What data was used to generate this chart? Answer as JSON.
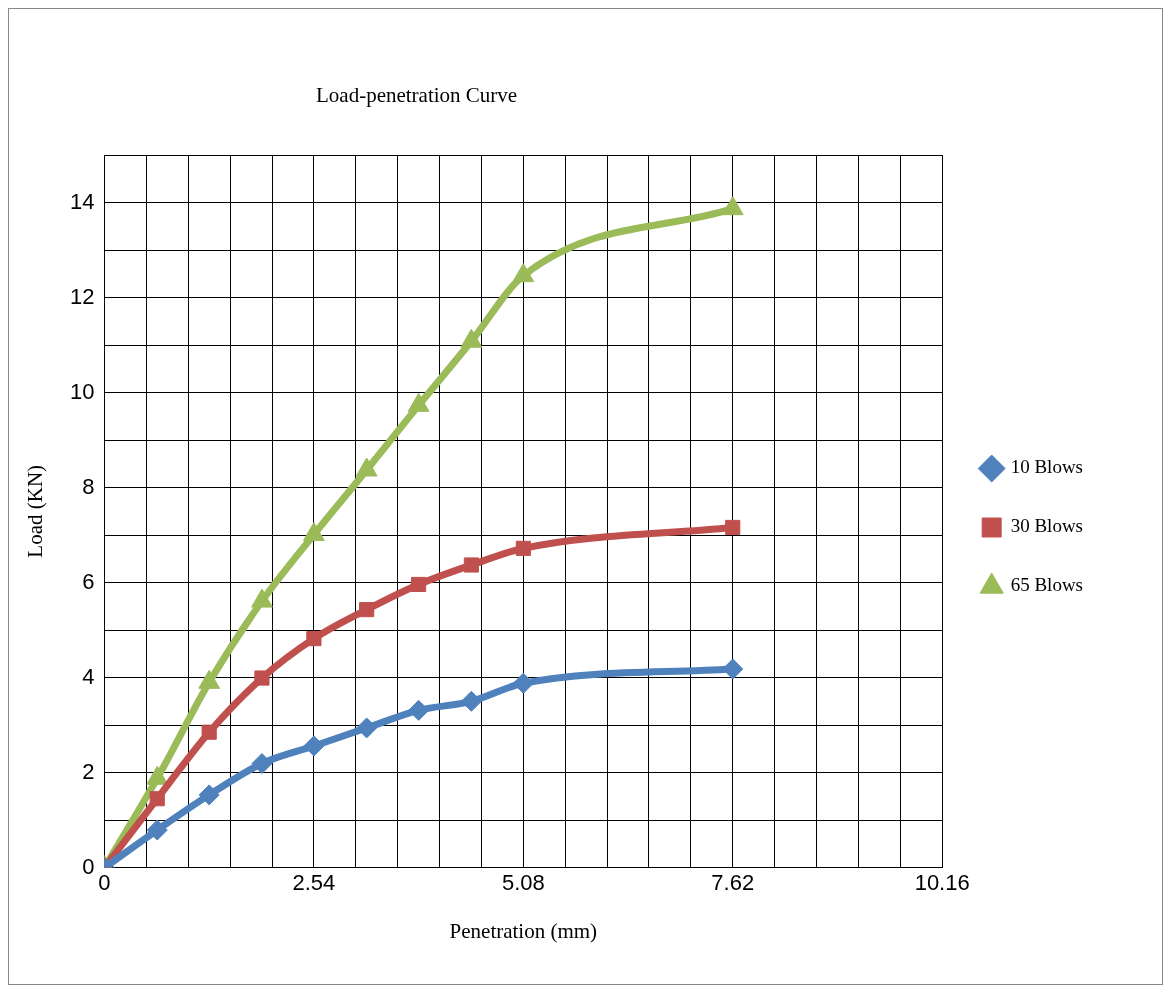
{
  "chart_data": {
    "type": "line",
    "title": "Load-penetration Curve",
    "xlabel": "Penetration (mm)",
    "ylabel": "Load (KN)",
    "x": [
      0,
      0.64,
      1.27,
      1.91,
      2.54,
      3.18,
      3.81,
      4.45,
      5.08,
      7.62
    ],
    "series": [
      {
        "name": "10 Blows",
        "color": "#4f81bd",
        "marker": "diamond",
        "values": [
          0,
          0.79,
          1.53,
          2.19,
          2.56,
          2.94,
          3.31,
          3.5,
          3.88,
          4.18
        ]
      },
      {
        "name": "30 Blows",
        "color": "#c0504d",
        "marker": "square",
        "values": [
          0,
          1.45,
          2.85,
          3.99,
          4.82,
          5.43,
          5.96,
          6.37,
          6.72,
          7.16
        ]
      },
      {
        "name": "65 Blows",
        "color": "#9bbb59",
        "marker": "triangle",
        "values": [
          0,
          1.88,
          3.9,
          5.61,
          7.01,
          8.37,
          9.73,
          11.08,
          12.46,
          13.87
        ]
      }
    ],
    "xlim": [
      0,
      10.16
    ],
    "xticks": [
      0,
      {
        "value": 0.508,
        "label": null
      },
      {
        "value": 1.016,
        "label": null
      },
      {
        "value": 1.524,
        "label": null
      },
      {
        "value": 2.032,
        "label": null
      },
      2.54,
      {
        "value": 3.048,
        "label": null
      },
      {
        "value": 3.556,
        "label": null
      },
      {
        "value": 4.064,
        "label": null
      },
      {
        "value": 4.572,
        "label": null
      },
      5.08,
      {
        "value": 5.588,
        "label": null
      },
      {
        "value": 6.096,
        "label": null
      },
      {
        "value": 6.604,
        "label": null
      },
      {
        "value": 7.112,
        "label": null
      },
      7.62,
      {
        "value": 8.128,
        "label": null
      },
      {
        "value": 8.636,
        "label": null
      },
      {
        "value": 9.144,
        "label": null
      },
      {
        "value": 9.652,
        "label": null
      },
      10.16
    ],
    "ylim": [
      0,
      15
    ],
    "yticks": [
      0,
      {
        "value": 1,
        "label": null
      },
      2,
      {
        "value": 3,
        "label": null
      },
      4,
      {
        "value": 5,
        "label": null
      },
      6,
      {
        "value": 7,
        "label": null
      },
      8,
      {
        "value": 9,
        "label": null
      },
      10,
      {
        "value": 11,
        "label": null
      },
      12,
      {
        "value": 13,
        "label": null
      },
      14,
      {
        "value": 15,
        "label": null
      }
    ],
    "grid": true,
    "legend": "right",
    "line_style": "solid"
  }
}
